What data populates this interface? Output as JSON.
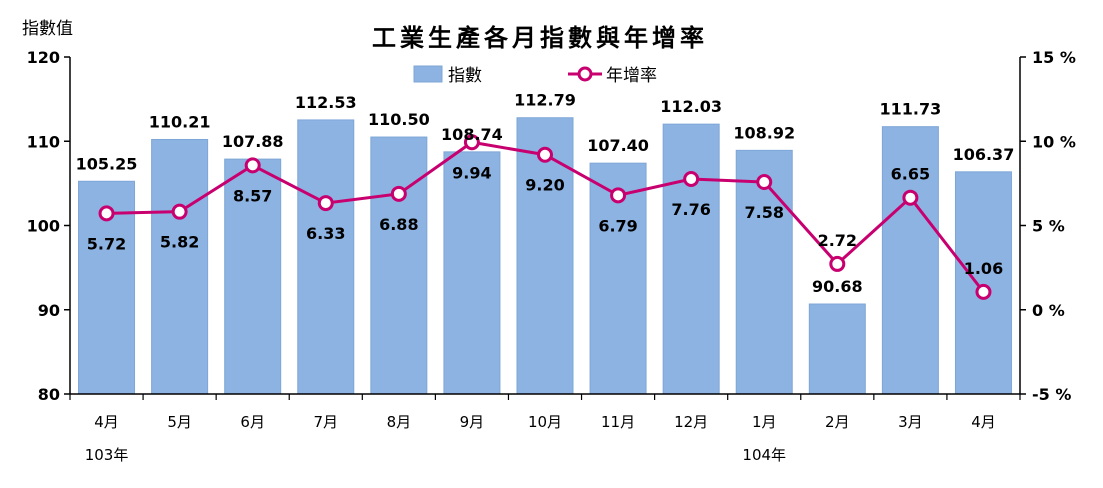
{
  "chart_data": {
    "type": "bar+line",
    "title": "工業生產各月指數與年增率",
    "ylabel_left": "指數值",
    "ylim_left": [
      80,
      120
    ],
    "yticks_left": [
      "80",
      "90",
      "100",
      "110",
      "120"
    ],
    "ylim_right": [
      -5,
      15
    ],
    "yticks_right": [
      "-5 %",
      "0 %",
      "5 %",
      "10 %",
      "15 %"
    ],
    "categories": [
      "4月",
      "5月",
      "6月",
      "7月",
      "8月",
      "9月",
      "10月",
      "11月",
      "12月",
      "1月",
      "2月",
      "3月",
      "4月"
    ],
    "year_labels": [
      {
        "label": "103年",
        "category_index": 0
      },
      {
        "label": "104年",
        "category_index": 9
      }
    ],
    "series": [
      {
        "name": "指數",
        "type": "bar",
        "axis": "left",
        "values": [
          105.25,
          110.21,
          107.88,
          112.53,
          110.5,
          108.74,
          112.79,
          107.4,
          112.03,
          108.92,
          90.68,
          111.73,
          106.37
        ],
        "labels": [
          "105.25",
          "110.21",
          "107.88",
          "112.53",
          "110.50",
          "108.74",
          "112.79",
          "107.40",
          "112.03",
          "108.92",
          "90.68",
          "111.73",
          "106.37"
        ]
      },
      {
        "name": "年增率",
        "type": "line",
        "axis": "right",
        "values": [
          5.72,
          5.82,
          8.57,
          6.33,
          6.88,
          9.94,
          9.2,
          6.79,
          7.76,
          7.58,
          2.72,
          6.65,
          1.06
        ],
        "labels": [
          "5.72",
          "5.82",
          "8.57",
          "6.33",
          "6.88",
          "9.94",
          "9.20",
          "6.79",
          "7.76",
          "7.58",
          "2.72",
          "6.65",
          "1.06"
        ]
      }
    ],
    "legend": {
      "position": "top-center",
      "items": [
        "指數",
        "年增率"
      ]
    },
    "grid": false,
    "colors": {
      "bar": "#8db3e2",
      "bar_edge": "#7ea6d6",
      "line": "#c8006f",
      "marker_fill": "#ffffff",
      "axis": "#000000"
    }
  }
}
